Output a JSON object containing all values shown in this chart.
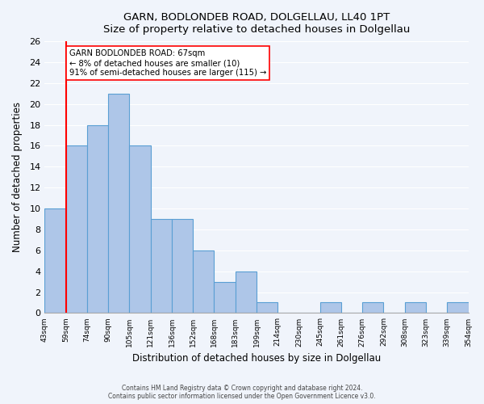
{
  "title": "GARN, BODLONDEB ROAD, DOLGELLAU, LL40 1PT",
  "subtitle": "Size of property relative to detached houses in Dolgellau",
  "xlabel": "Distribution of detached houses by size in Dolgellau",
  "ylabel": "Number of detached properties",
  "bin_labels": [
    "43sqm",
    "59sqm",
    "74sqm",
    "90sqm",
    "105sqm",
    "121sqm",
    "136sqm",
    "152sqm",
    "168sqm",
    "183sqm",
    "199sqm",
    "214sqm",
    "230sqm",
    "245sqm",
    "261sqm",
    "276sqm",
    "292sqm",
    "308sqm",
    "323sqm",
    "339sqm",
    "354sqm"
  ],
  "bar_values": [
    10,
    16,
    18,
    21,
    16,
    9,
    9,
    6,
    3,
    4,
    1,
    0,
    0,
    1,
    0,
    1,
    0,
    1,
    0,
    1
  ],
  "ylim": [
    0,
    26
  ],
  "yticks": [
    0,
    2,
    4,
    6,
    8,
    10,
    12,
    14,
    16,
    18,
    20,
    22,
    24,
    26
  ],
  "bar_color": "#aec6e8",
  "bar_edge_color": "#5a9fd4",
  "property_line_x": 1,
  "property_label": "GARN BODLONDEB ROAD: 67sqm",
  "annotation_line1": "← 8% of detached houses are smaller (10)",
  "annotation_line2": "91% of semi-detached houses are larger (115) →",
  "footer_line1": "Contains HM Land Registry data © Crown copyright and database right 2024.",
  "footer_line2": "Contains public sector information licensed under the Open Government Licence v3.0.",
  "background_color": "#f0f4fb",
  "plot_bg_color": "#f0f4fb"
}
